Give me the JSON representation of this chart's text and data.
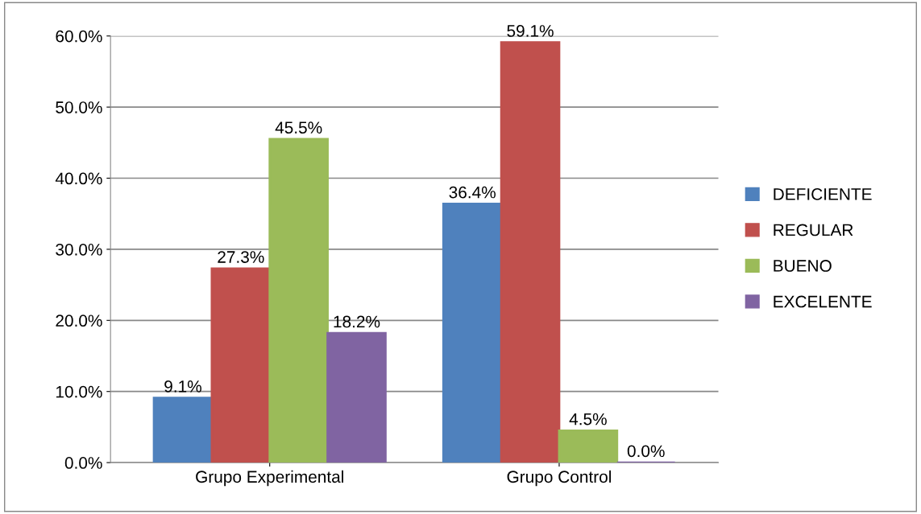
{
  "chart_data": {
    "type": "bar",
    "categories": [
      "Grupo Experimental",
      "Grupo Control"
    ],
    "series": [
      {
        "name": "DEFICIENTE",
        "color": "#4f81bd",
        "values": [
          9.1,
          36.4
        ],
        "value_labels": [
          "9.1%",
          "36.4%"
        ]
      },
      {
        "name": "REGULAR",
        "color": "#c0504d",
        "values": [
          27.3,
          59.1
        ],
        "value_labels": [
          "27.3%",
          "59.1%"
        ]
      },
      {
        "name": "BUENO",
        "color": "#9bbb59",
        "values": [
          45.5,
          4.5
        ],
        "value_labels": [
          "45.5%",
          "4.5%"
        ]
      },
      {
        "name": "EXCELENTE",
        "color": "#8064a2",
        "values": [
          18.2,
          0.0
        ],
        "value_labels": [
          "18.2%",
          "0.0%"
        ]
      }
    ],
    "ylim": [
      0,
      60
    ],
    "yticks": [
      {
        "value": 0,
        "label": "0.0%"
      },
      {
        "value": 10,
        "label": "10.0%"
      },
      {
        "value": 20,
        "label": "20.0%"
      },
      {
        "value": 30,
        "label": "30.0%"
      },
      {
        "value": 40,
        "label": "40.0%"
      },
      {
        "value": 50,
        "label": "50.0%"
      },
      {
        "value": 60,
        "label": "60.0%"
      }
    ],
    "grid": "y",
    "legend": "right"
  }
}
